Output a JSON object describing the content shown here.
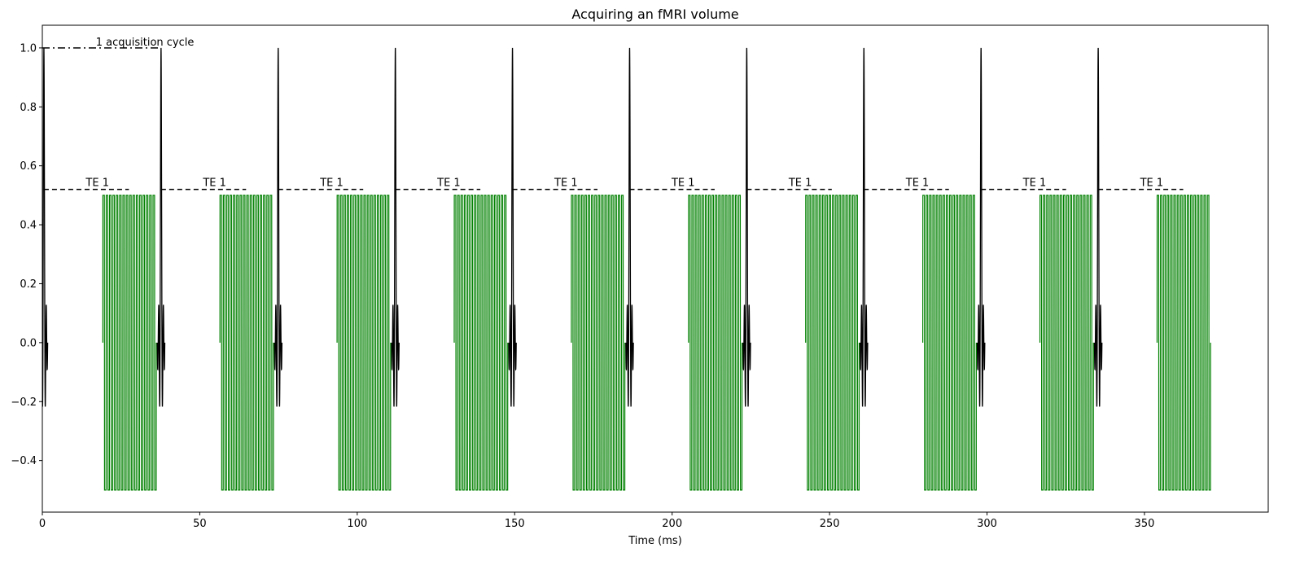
{
  "chart_data": {
    "type": "line",
    "title": "Acquiring an fMRI volume",
    "xlabel": "Time (ms)",
    "ylabel": "",
    "xlim": [
      0,
      389.3
    ],
    "ylim": [
      -0.575,
      1.077
    ],
    "xticks": [
      0,
      50,
      100,
      150,
      200,
      250,
      300,
      350
    ],
    "xtick_labels": [
      "0",
      "50",
      "100",
      "150",
      "200",
      "250",
      "300",
      "350"
    ],
    "yticks": [
      -0.4,
      -0.2,
      0.0,
      0.2,
      0.4,
      0.6,
      0.8,
      1.0
    ],
    "ytick_labels": [
      "−0.4",
      "−0.2",
      "0.0",
      "0.2",
      "0.4",
      "0.6",
      "0.8",
      "1.0"
    ],
    "grid": false,
    "rf_pulse": {
      "color": "#000000",
      "peak": 1.0,
      "shape": "sinc",
      "centers_ms": [
        0.5,
        37.7,
        74.9,
        112.1,
        149.3,
        186.5,
        223.7,
        260.9,
        298.1,
        335.3
      ]
    },
    "readout": {
      "color": "#008000",
      "amplitude": 0.5,
      "start_offset_ms": 18.7,
      "end_offset_ms": 35.7,
      "oscillations": 16
    },
    "te_markers": {
      "y": 0.52,
      "length_ms": 27.0,
      "label": "TE 1",
      "label_offset_ms": 17.0,
      "style": "dashed"
    },
    "cycle_marker": {
      "y": 1.0,
      "x_range": [
        0,
        37
      ],
      "label": "1 acquisition cycle",
      "label_x": 17,
      "style": "dash-dot"
    }
  }
}
